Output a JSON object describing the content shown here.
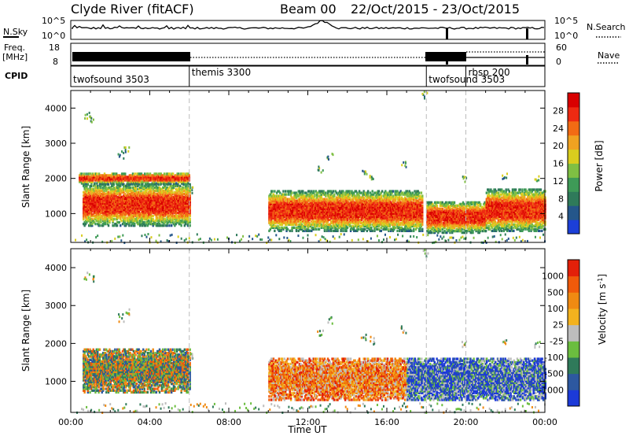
{
  "header": {
    "title": "Clyde River (fitACF)",
    "beam": "Beam 00",
    "date_range": "22/Oct/2015 - 23/Oct/2015"
  },
  "nsky_panel": {
    "label": "N.Sky",
    "left_ticks": [
      "10^5",
      "10^0"
    ],
    "right_ticks": [
      "10^5",
      "10^0"
    ],
    "right_label": "N.Search"
  },
  "freq_panel": {
    "label_line1": "Freq.",
    "label_line2": "[MHz]",
    "left_ticks": [
      "18",
      "8"
    ],
    "right_ticks": [
      "60",
      "0"
    ],
    "right_label": "Nave"
  },
  "cpid_panel": {
    "label": "CPID",
    "modes": [
      {
        "name": "twofsound 3503",
        "start_hour": 0
      },
      {
        "name": "themis 3300",
        "start_hour": 6
      },
      {
        "name": "twofsound 3503",
        "start_hour": 18
      },
      {
        "name": "rbsp 200",
        "start_hour": 20
      }
    ]
  },
  "chart_data": [
    {
      "type": "heatmap",
      "name": "Power",
      "ylabel": "Slant Range [km]",
      "xlabel": "",
      "xlim_hours": [
        0,
        24
      ],
      "ylim": [
        180,
        4500
      ],
      "yticks": [
        1000,
        2000,
        3000,
        4000
      ],
      "mode_change_hours": [
        6,
        18,
        20
      ],
      "colorbar": {
        "label": "Power [dB]",
        "range": [
          0,
          32
        ],
        "ticks": [
          "4",
          "8",
          "12",
          "16",
          "20",
          "24",
          "28"
        ],
        "colors": [
          "#1c3fd8",
          "#24568a",
          "#2f7a5a",
          "#3e9a57",
          "#7fbf43",
          "#d9cd1e",
          "#f0a221",
          "#f26b14",
          "#ee2a12",
          "#d90000"
        ]
      },
      "echo_regions": [
        {
          "t0": 0.6,
          "t1": 6.0,
          "r0": 650,
          "r1": 1850,
          "level": 27,
          "note": "core"
        },
        {
          "t0": 0.4,
          "t1": 6.0,
          "r0": 1850,
          "r1": 2150,
          "level": 9
        },
        {
          "t0": 10.0,
          "t1": 17.8,
          "r0": 500,
          "r1": 1650,
          "level": 28
        },
        {
          "t0": 18.0,
          "t1": 21.0,
          "r0": 450,
          "r1": 1350,
          "level": 29
        },
        {
          "t0": 21.0,
          "t1": 24.0,
          "r0": 500,
          "r1": 1700,
          "level": 27
        }
      ]
    },
    {
      "type": "heatmap",
      "name": "Velocity",
      "ylabel": "Slant Range [km]",
      "xlabel": "Time UT",
      "xlim_hours": [
        0,
        24
      ],
      "ylim": [
        180,
        4500
      ],
      "yticks": [
        1000,
        2000,
        3000,
        4000
      ],
      "xticks": [
        "00:00",
        "04:00",
        "08:00",
        "12:00",
        "16:00",
        "20:00",
        "00:00"
      ],
      "mode_change_hours": [
        6,
        18,
        20
      ],
      "colorbar": {
        "label": "Velocity [m s-1]",
        "ticks": [
          "1000",
          "500",
          "100",
          "25",
          "-25",
          "-100",
          "-500",
          "-1000"
        ],
        "colors": [
          "#1c3ad8",
          "#2d58a0",
          "#2f7a5a",
          "#6bbd3f",
          "#bdbdbd",
          "#f3b21e",
          "#f08a12",
          "#f05a0a",
          "#e32009"
        ]
      },
      "echo_regions": [
        {
          "t0": 0.6,
          "t1": 6.0,
          "r0": 700,
          "r1": 1850,
          "level": "mixed green/orange"
        },
        {
          "t0": 10.0,
          "t1": 17.0,
          "r0": 500,
          "r1": 1600,
          "level": "orange"
        },
        {
          "t0": 17.0,
          "t1": 24.0,
          "r0": 500,
          "r1": 1600,
          "level": "blue"
        }
      ]
    }
  ]
}
